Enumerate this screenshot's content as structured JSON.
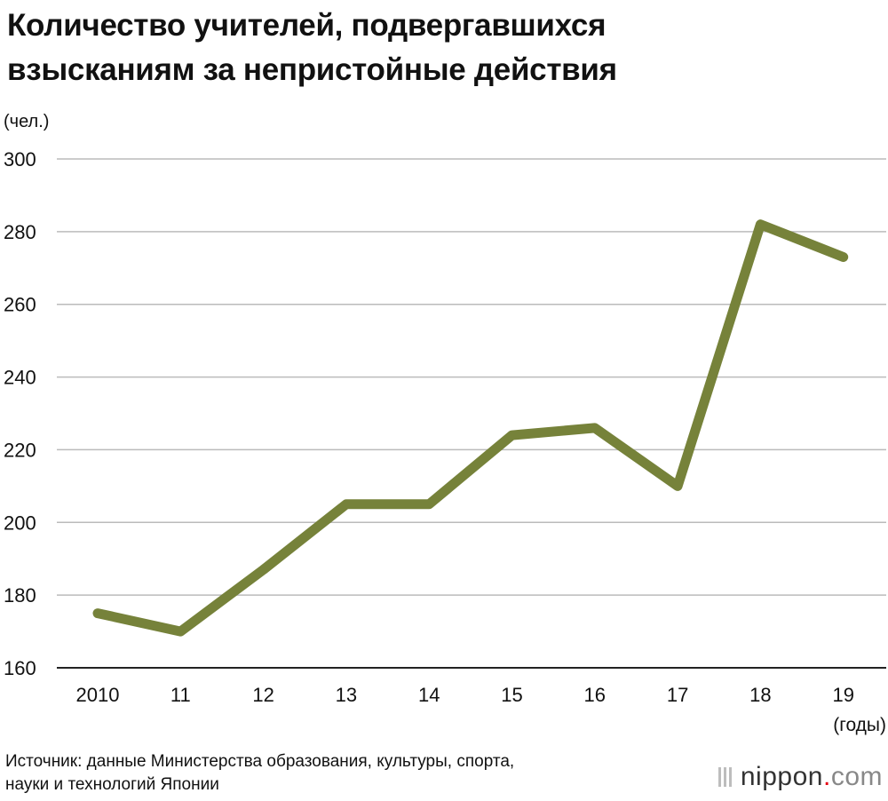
{
  "title_lines": [
    "Количество учителей, подвергавшихся",
    "взысканиям за непристойные действия"
  ],
  "source_lines": [
    "Источник: данные Министерства образования, культуры, спорта,",
    "науки и технологий Японии"
  ],
  "logo": {
    "name": "nippon",
    "dot": ".",
    "tld": "com"
  },
  "colors": {
    "line": "#76823a",
    "grid": "#bbbbbb",
    "text": "#111111"
  },
  "chart_data": {
    "type": "line",
    "title": "Количество учителей, подвергавшихся взысканиям за непристойные действия",
    "ylabel": "(чел.)",
    "xlabel": "(годы)",
    "categories": [
      "2010",
      "11",
      "12",
      "13",
      "14",
      "15",
      "16",
      "17",
      "18",
      "19"
    ],
    "values": [
      175,
      170,
      187,
      205,
      205,
      224,
      226,
      210,
      282,
      273
    ],
    "ylim": [
      160,
      300
    ],
    "yticks": [
      160,
      180,
      200,
      220,
      240,
      260,
      280,
      300
    ],
    "grid": true,
    "legend": "none"
  }
}
